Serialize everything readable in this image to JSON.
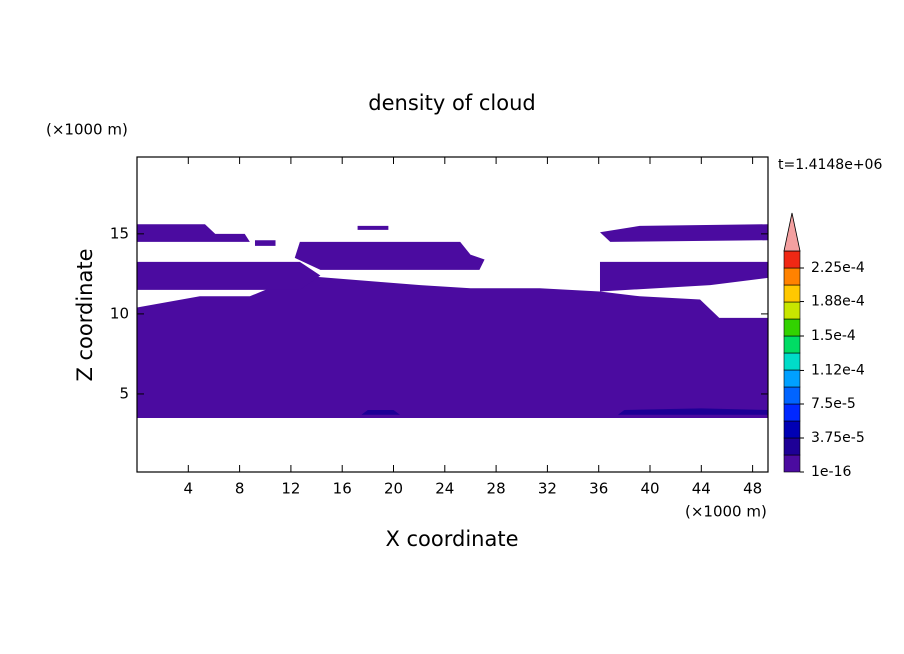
{
  "chart_data": {
    "type": "contour",
    "title": "density of cloud",
    "x_label": "X coordinate",
    "y_label": "Z coordinate",
    "x_unit": "(×1000 m)",
    "y_unit": "(×1000 m)",
    "time_label": "t=1.4148e+06",
    "xlim": [
      0,
      49.2
    ],
    "ylim": [
      0.125,
      19.8
    ],
    "xticks": [
      4,
      8,
      12,
      16,
      20,
      24,
      28,
      32,
      36,
      40,
      44,
      48
    ],
    "yticks": [
      5,
      10,
      15
    ],
    "levels": [
      1e-16,
      1.875e-05,
      3.75e-05,
      5.625e-05,
      7.5e-05,
      9.375e-05,
      0.0001125,
      0.00013125,
      0.00015,
      0.00016875,
      0.0001875,
      0.00020625,
      0.000225,
      0.00024375
    ],
    "colors": [
      "#4b0ba0",
      "#1e0096",
      "#0000b4",
      "#0028ff",
      "#0064ff",
      "#00a0ff",
      "#00dcc8",
      "#00dc64",
      "#32d200",
      "#c8e600",
      "#ffc800",
      "#ff8200",
      "#f02814"
    ],
    "extend_color": "#f4a0a0",
    "colorbar_ticks": [
      {
        "value": 1e-16,
        "label": "1e-16"
      },
      {
        "value": 3.75e-05,
        "label": "3.75e-5"
      },
      {
        "value": 7.5e-05,
        "label": "7.5e-5"
      },
      {
        "value": 0.000112,
        "label": "1.12e-4"
      },
      {
        "value": 0.00015,
        "label": "1.5e-4"
      },
      {
        "value": 0.000188,
        "label": "1.88e-4"
      },
      {
        "value": 0.000225,
        "label": "2.25e-4"
      }
    ],
    "regions": [
      {
        "value": 1e-16,
        "points": [
          [
            0,
            3.5
          ],
          [
            49.2,
            3.5
          ],
          [
            49.2,
            9.75
          ],
          [
            45.4,
            9.75
          ],
          [
            43.9,
            10.9
          ],
          [
            39.2,
            11.1
          ],
          [
            36.1,
            11.4
          ],
          [
            31.4,
            11.6
          ],
          [
            26.0,
            11.6
          ],
          [
            22.1,
            11.8
          ],
          [
            18.9,
            12.0
          ],
          [
            15.0,
            12.25
          ],
          [
            12.7,
            12.4
          ],
          [
            8.8,
            11.1
          ],
          [
            4.9,
            11.1
          ],
          [
            0,
            10.4
          ]
        ]
      },
      {
        "value": 1e-16,
        "points": [
          [
            0,
            13.25
          ],
          [
            12.7,
            13.25
          ],
          [
            14.3,
            12.4
          ],
          [
            12.7,
            11.5
          ],
          [
            0,
            11.5
          ]
        ]
      },
      {
        "value": 1e-16,
        "points": [
          [
            36.1,
            13.25
          ],
          [
            49.2,
            13.25
          ],
          [
            49.2,
            12.25
          ],
          [
            44.7,
            11.8
          ],
          [
            36.1,
            11.4
          ]
        ]
      },
      {
        "value": 1e-16,
        "points": [
          [
            0,
            15.6
          ],
          [
            5.3,
            15.6
          ],
          [
            6.1,
            15.0
          ],
          [
            8.4,
            15.0
          ],
          [
            8.8,
            14.5
          ],
          [
            0,
            14.5
          ]
        ]
      },
      {
        "value": 1e-16,
        "points": [
          [
            9.2,
            14.6
          ],
          [
            10.8,
            14.6
          ],
          [
            10.8,
            14.25
          ],
          [
            9.2,
            14.25
          ]
        ]
      },
      {
        "value": 1e-16,
        "points": [
          [
            12.7,
            14.5
          ],
          [
            25.2,
            14.5
          ],
          [
            26.0,
            13.7
          ],
          [
            27.1,
            13.4
          ],
          [
            26.7,
            12.75
          ],
          [
            14.3,
            12.75
          ],
          [
            12.3,
            13.5
          ]
        ]
      },
      {
        "value": 1e-16,
        "points": [
          [
            17.2,
            15.5
          ],
          [
            19.6,
            15.5
          ],
          [
            19.6,
            15.25
          ],
          [
            17.2,
            15.25
          ]
        ]
      },
      {
        "value": 1e-16,
        "points": [
          [
            36.1,
            15.1
          ],
          [
            39.2,
            15.5
          ],
          [
            49.2,
            15.6
          ],
          [
            49.2,
            14.6
          ],
          [
            36.9,
            14.5
          ]
        ]
      },
      {
        "value": 1.875e-05,
        "points": [
          [
            17.5,
            3.7
          ],
          [
            20.5,
            3.7
          ],
          [
            20.0,
            4.0
          ],
          [
            18.0,
            4.0
          ]
        ]
      },
      {
        "value": 1.875e-05,
        "points": [
          [
            37.5,
            3.7
          ],
          [
            49.2,
            3.7
          ],
          [
            49.2,
            4.0
          ],
          [
            44.0,
            4.1
          ],
          [
            38.0,
            4.0
          ]
        ]
      }
    ]
  }
}
